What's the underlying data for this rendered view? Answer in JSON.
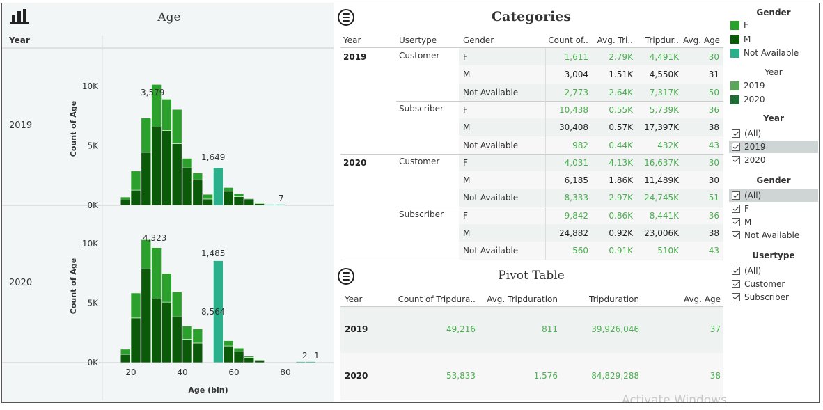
{
  "age_panel": {
    "title": "Age",
    "row_header": "Year",
    "row_labels": [
      "2019",
      "2020"
    ],
    "y_axis_label": "Count of Age",
    "y_ticks": [
      "10K",
      "5K",
      "0K"
    ],
    "x_axis_label": "Age (bin)",
    "x_ticks": [
      "20",
      "40",
      "60",
      "80"
    ],
    "annotations_2019": [
      "3,579",
      "1,649",
      "7"
    ],
    "annotations_2020": [
      "4,323",
      "1,485",
      "8,564",
      "2",
      "1"
    ]
  },
  "chart_data": [
    {
      "type": "bar",
      "title": "Age",
      "facet": "2019",
      "xlabel": "Age (bin)",
      "ylabel": "Count of Age",
      "ylim": [
        0,
        13500
      ],
      "bin_start": [
        16,
        20,
        24,
        28,
        32,
        36,
        40,
        44,
        48,
        52,
        56,
        60,
        64,
        68,
        72,
        76
      ],
      "bin_width": 4,
      "series": [
        {
          "name": "M",
          "values": [
            430,
            1280,
            4450,
            6580,
            6280,
            5180,
            3150,
            2150,
            530,
            0,
            1180,
            730,
            440,
            140,
            0,
            0
          ]
        },
        {
          "name": "F",
          "values": [
            270,
            1600,
            2880,
            3580,
            2650,
            2880,
            800,
            560,
            400,
            0,
            320,
            250,
            120,
            60,
            0,
            0
          ]
        },
        {
          "name": "Not Available",
          "values": [
            0,
            0,
            0,
            0,
            0,
            0,
            0,
            0,
            0,
            3150,
            0,
            0,
            0,
            0,
            60,
            7
          ]
        }
      ]
    },
    {
      "type": "bar",
      "title": "Age",
      "facet": "2020",
      "xlabel": "Age (bin)",
      "ylabel": "Count of Age",
      "ylim": [
        0,
        13500
      ],
      "bin_start": [
        16,
        20,
        24,
        28,
        32,
        36,
        40,
        44,
        48,
        52,
        56,
        60,
        64,
        68,
        84,
        88
      ],
      "bin_width": 4,
      "series": [
        {
          "name": "M",
          "values": [
            700,
            3750,
            7880,
            5350,
            5080,
            3850,
            1960,
            1640,
            0,
            0,
            1400,
            920,
            440,
            140,
            0,
            0
          ]
        },
        {
          "name": "F",
          "values": [
            420,
            2100,
            2450,
            4323,
            2420,
            2100,
            1100,
            1200,
            0,
            0,
            440,
            300,
            100,
            60,
            0,
            0
          ]
        },
        {
          "name": "Not Available",
          "values": [
            0,
            0,
            0,
            0,
            0,
            0,
            0,
            0,
            0,
            8564,
            0,
            0,
            0,
            0,
            2,
            1
          ]
        }
      ]
    }
  ],
  "categories": {
    "title": "Categories",
    "headers": [
      "Year",
      "Usertype",
      "Gender",
      "Count of..",
      "Avg. Tri..",
      "Tripdur..",
      "Avg. Age"
    ],
    "rows": [
      {
        "year": "2019",
        "usertype": "Customer",
        "gender": "F",
        "count": "1,611",
        "avg_trip": "2.79K",
        "tripdur": "4,491K",
        "avg_age": "30"
      },
      {
        "year": "",
        "usertype": "",
        "gender": "M",
        "count": "3,004",
        "avg_trip": "1.51K",
        "tripdur": "4,550K",
        "avg_age": "31"
      },
      {
        "year": "",
        "usertype": "",
        "gender": "Not Available",
        "count": "2,773",
        "avg_trip": "2.64K",
        "tripdur": "7,317K",
        "avg_age": "50"
      },
      {
        "year": "",
        "usertype": "Subscriber",
        "gender": "F",
        "count": "10,438",
        "avg_trip": "0.55K",
        "tripdur": "5,739K",
        "avg_age": "36"
      },
      {
        "year": "",
        "usertype": "",
        "gender": "M",
        "count": "30,408",
        "avg_trip": "0.57K",
        "tripdur": "17,397K",
        "avg_age": "38"
      },
      {
        "year": "",
        "usertype": "",
        "gender": "Not Available",
        "count": "982",
        "avg_trip": "0.44K",
        "tripdur": "432K",
        "avg_age": "43"
      },
      {
        "year": "2020",
        "usertype": "Customer",
        "gender": "F",
        "count": "4,031",
        "avg_trip": "4.13K",
        "tripdur": "16,637K",
        "avg_age": "30"
      },
      {
        "year": "",
        "usertype": "",
        "gender": "M",
        "count": "6,185",
        "avg_trip": "1.86K",
        "tripdur": "11,489K",
        "avg_age": "30"
      },
      {
        "year": "",
        "usertype": "",
        "gender": "Not Available",
        "count": "8,333",
        "avg_trip": "2.97K",
        "tripdur": "24,745K",
        "avg_age": "51"
      },
      {
        "year": "",
        "usertype": "Subscriber",
        "gender": "F",
        "count": "9,842",
        "avg_trip": "0.86K",
        "tripdur": "8,441K",
        "avg_age": "36"
      },
      {
        "year": "",
        "usertype": "",
        "gender": "M",
        "count": "24,882",
        "avg_trip": "0.92K",
        "tripdur": "23,006K",
        "avg_age": "38"
      },
      {
        "year": "",
        "usertype": "",
        "gender": "Not Available",
        "count": "560",
        "avg_trip": "0.91K",
        "tripdur": "510K",
        "avg_age": "43"
      }
    ]
  },
  "pivot": {
    "title": "Pivot Table",
    "headers": [
      "Year",
      "Count of Tripdura..",
      "Avg. Tripduration",
      "Tripduration",
      "Avg. Age"
    ],
    "rows": [
      {
        "year": "2019",
        "count": "49,216",
        "avg_trip": "811",
        "tripdur": "39,926,046",
        "avg_age": "37"
      },
      {
        "year": "2020",
        "count": "53,833",
        "avg_trip": "1,576",
        "tripdur": "84,829,288",
        "avg_age": "38"
      }
    ]
  },
  "legend_gender": {
    "title": "Gender",
    "items": [
      {
        "label": "F",
        "color": "#2ca02c"
      },
      {
        "label": "M",
        "color": "#0a5a0a"
      },
      {
        "label": "Not Available",
        "color": "#2ab08a"
      }
    ]
  },
  "legend_year": {
    "title": "Year",
    "items": [
      {
        "label": "2019",
        "color": "#5aa65a"
      },
      {
        "label": "2020",
        "color": "#1f6b35"
      }
    ]
  },
  "filter_year": {
    "title": "Year",
    "items": [
      "(All)",
      "2019",
      "2020"
    ]
  },
  "filter_gender": {
    "title": "Gender",
    "items": [
      "(All)",
      "F",
      "M",
      "Not Available"
    ]
  },
  "filter_usertype": {
    "title": "Usertype",
    "items": [
      "(All)",
      "Customer",
      "Subscriber"
    ]
  },
  "watermark": "Activate Windows",
  "colors": {
    "F": "#2ca02c",
    "M": "#0a5a0a",
    "NA": "#2ab08a",
    "value_green": "#4caf50",
    "value_dark": "#222222"
  }
}
